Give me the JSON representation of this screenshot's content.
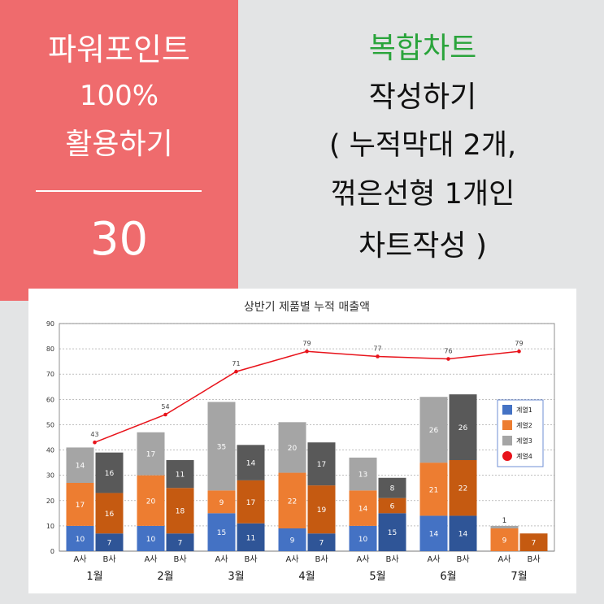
{
  "left_panel": {
    "line1": "파워포인트",
    "line2": "100%",
    "line3": "활용하기",
    "number": "30",
    "bg_color": "#ef6b6d"
  },
  "title_panel": {
    "line1": "복합차트",
    "line2": "작성하기",
    "line3": "( 누적막대 2개,",
    "line4": "꺾은선형 1개인",
    "line5": "차트작성 )",
    "highlight_color": "#2aa43b"
  },
  "chart_data": {
    "type": "bar",
    "stacked": true,
    "title": "상반기 제품별 누적 매출액",
    "ylim": [
      0,
      90
    ],
    "yticks": [
      0,
      10,
      20,
      30,
      40,
      50,
      60,
      70,
      80,
      90
    ],
    "grid": true,
    "legend_position": "right",
    "months": [
      "1월",
      "2월",
      "3월",
      "4월",
      "5월",
      "6월",
      "7월"
    ],
    "companies": [
      "A사",
      "B사"
    ],
    "series": [
      {
        "name": "계열1",
        "color_a": "#4472c4",
        "color_b": "#2f5597",
        "A": [
          10,
          10,
          15,
          9,
          10,
          14,
          0
        ],
        "B": [
          7,
          7,
          11,
          7,
          15,
          14,
          0
        ]
      },
      {
        "name": "계열2",
        "color_a": "#ed7d31",
        "color_b": "#c55a11",
        "A": [
          17,
          20,
          9,
          22,
          14,
          21,
          9
        ],
        "B": [
          16,
          18,
          17,
          19,
          6,
          22,
          7
        ]
      },
      {
        "name": "계열3",
        "color_a": "#a5a5a5",
        "color_b": "#595959",
        "A": [
          14,
          17,
          35,
          20,
          13,
          26,
          1
        ],
        "B": [
          16,
          11,
          14,
          17,
          8,
          26,
          0
        ]
      }
    ],
    "line_series": {
      "name": "계열4",
      "color": "#e8131b",
      "values": [
        43,
        54,
        71,
        79,
        77,
        76,
        79
      ]
    },
    "legend": [
      {
        "name": "계열1",
        "color": "#4472c4",
        "marker": "square"
      },
      {
        "name": "계열2",
        "color": "#ed7d31",
        "marker": "square"
      },
      {
        "name": "계열3",
        "color": "#a5a5a5",
        "marker": "square"
      },
      {
        "name": "계열4",
        "color": "#e8131b",
        "marker": "circle"
      }
    ]
  }
}
